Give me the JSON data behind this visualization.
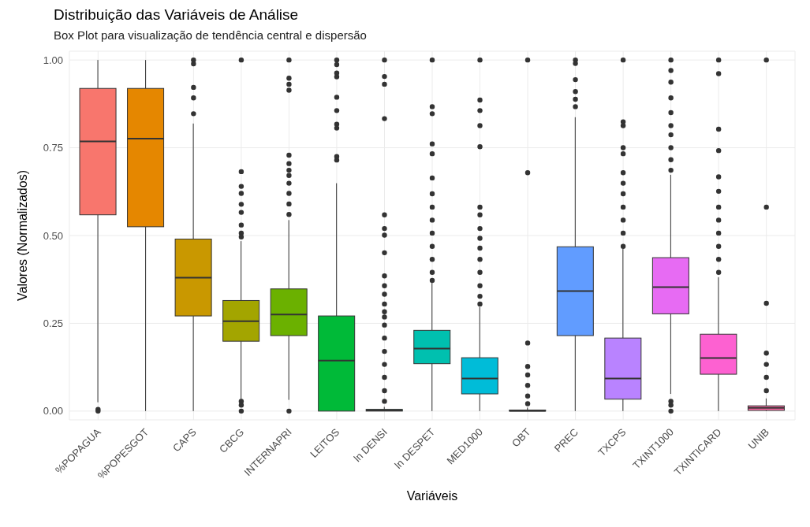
{
  "chart_data": {
    "type": "box",
    "title": "Distribuição das Variáveis de Análise",
    "subtitle": "Box Plot para visualização de tendência central e dispersão",
    "xlabel": "Variáveis",
    "ylabel": "Valores (Normalizados)",
    "categories": [
      "%POPAGUA",
      "%POPESGOT",
      "CAPS",
      "CBCG",
      "INTERNAPRI",
      "LEITOS",
      "ln DENSI",
      "ln DESPET",
      "MED1000",
      "OBT",
      "PREC",
      "TXCPS",
      "TXINT1000",
      "TXINTICARD",
      "UNIB"
    ],
    "colors": [
      "#f8766d",
      "#e58700",
      "#c99800",
      "#a3a500",
      "#6bb100",
      "#00ba38",
      "#00bf7d",
      "#00c0af",
      "#00bcd8",
      "#00b0f6",
      "#619cff",
      "#b983ff",
      "#e76bf3",
      "#fd61d1",
      "#ff67a4"
    ],
    "boxes": [
      {
        "low": 0.025,
        "q1": 0.559,
        "median": 0.768,
        "q3": 0.919,
        "high": 1.0,
        "outliers": [
          0.005,
          0.0
        ]
      },
      {
        "low": 0.0,
        "q1": 0.525,
        "median": 0.776,
        "q3": 0.919,
        "high": 1.0
      },
      {
        "low": 0.0,
        "q1": 0.271,
        "median": 0.38,
        "q3": 0.49,
        "high": 0.819,
        "outliers": [
          1.0,
          0.989,
          0.922,
          0.892,
          0.847
        ]
      },
      {
        "low": 0.032,
        "q1": 0.199,
        "median": 0.256,
        "q3": 0.315,
        "high": 0.484,
        "outliers": [
          1.0,
          0.682,
          0.64,
          0.62,
          0.589,
          0.566,
          0.53,
          0.507,
          0.496,
          0.028,
          0.017,
          0.0
        ]
      },
      {
        "low": 0.032,
        "q1": 0.215,
        "median": 0.275,
        "q3": 0.348,
        "high": 0.544,
        "outliers": [
          1.0,
          0.948,
          0.931,
          0.914,
          0.729,
          0.705,
          0.686,
          0.671,
          0.649,
          0.62,
          0.59,
          0.56,
          0.0
        ]
      },
      {
        "low": 0.0,
        "q1": 0.0,
        "median": 0.144,
        "q3": 0.271,
        "high": 0.649,
        "outliers": [
          1.0,
          0.987,
          0.963,
          0.952,
          0.894,
          0.856,
          0.817,
          0.806,
          0.725,
          0.715
        ]
      },
      {
        "low": 0.0,
        "q1": 0.0,
        "median": 0.002,
        "q3": 0.005,
        "high": 0.012,
        "outliers": [
          1.0,
          0.953,
          0.931,
          0.833,
          0.559,
          0.52,
          0.501,
          0.451,
          0.385,
          0.357,
          0.333,
          0.305,
          0.283,
          0.268,
          0.245,
          0.208,
          0.17,
          0.133,
          0.096,
          0.058,
          0.028
        ]
      },
      {
        "low": 0.0,
        "q1": 0.135,
        "median": 0.178,
        "q3": 0.23,
        "high": 0.365,
        "outliers": [
          1.0,
          0.867,
          0.847,
          0.761,
          0.733,
          0.664,
          0.619,
          0.581,
          0.544,
          0.507,
          0.469,
          0.432,
          0.395,
          0.372
        ]
      },
      {
        "low": 0.0,
        "q1": 0.049,
        "median": 0.093,
        "q3": 0.152,
        "high": 0.297,
        "outliers": [
          1.0,
          0.886,
          0.856,
          0.813,
          0.753,
          0.581,
          0.559,
          0.52,
          0.492,
          0.464,
          0.432,
          0.395,
          0.357,
          0.327,
          0.305
        ]
      },
      {
        "low": 0.0,
        "q1": 0.0,
        "median": 0.001,
        "q3": 0.003,
        "high": 0.01,
        "outliers": [
          1.0,
          0.679,
          0.194,
          0.127,
          0.103,
          0.073,
          0.043,
          0.021
        ]
      },
      {
        "low": 0.0,
        "q1": 0.215,
        "median": 0.342,
        "q3": 0.468,
        "high": 0.837,
        "outliers": [
          1.0,
          0.99,
          0.944,
          0.91,
          0.888,
          0.867
        ]
      },
      {
        "low": 0.0,
        "q1": 0.034,
        "median": 0.093,
        "q3": 0.208,
        "high": 0.462,
        "outliers": [
          1.0,
          0.824,
          0.813,
          0.75,
          0.733,
          0.679,
          0.649,
          0.619,
          0.581,
          0.544,
          0.507,
          0.469
        ]
      },
      {
        "low": 0.049,
        "q1": 0.277,
        "median": 0.353,
        "q3": 0.437,
        "high": 0.673,
        "outliers": [
          1.0,
          0.97,
          0.937,
          0.892,
          0.85,
          0.813,
          0.787,
          0.75,
          0.716,
          0.686,
          0.028,
          0.017,
          0.0
        ]
      },
      {
        "low": 0.0,
        "q1": 0.105,
        "median": 0.151,
        "q3": 0.219,
        "high": 0.381,
        "outliers": [
          1.0,
          0.961,
          0.803,
          0.742,
          0.667,
          0.626,
          0.581,
          0.544,
          0.507,
          0.469,
          0.432,
          0.395
        ]
      },
      {
        "low": 0.0,
        "q1": 0.002,
        "median": 0.009,
        "q3": 0.015,
        "high": 0.036,
        "outliers": [
          1.0,
          0.581,
          0.307,
          0.165,
          0.133,
          0.096,
          0.058
        ]
      }
    ],
    "ylim": [
      -0.025,
      1.025
    ],
    "yticks": [
      {
        "value": 0,
        "label": "0.00"
      },
      {
        "value": 0.25,
        "label": "0.25"
      },
      {
        "value": 0.5,
        "label": "0.50"
      },
      {
        "value": 0.75,
        "label": "0.75"
      },
      {
        "value": 1,
        "label": "1.00"
      }
    ],
    "grid": true
  }
}
